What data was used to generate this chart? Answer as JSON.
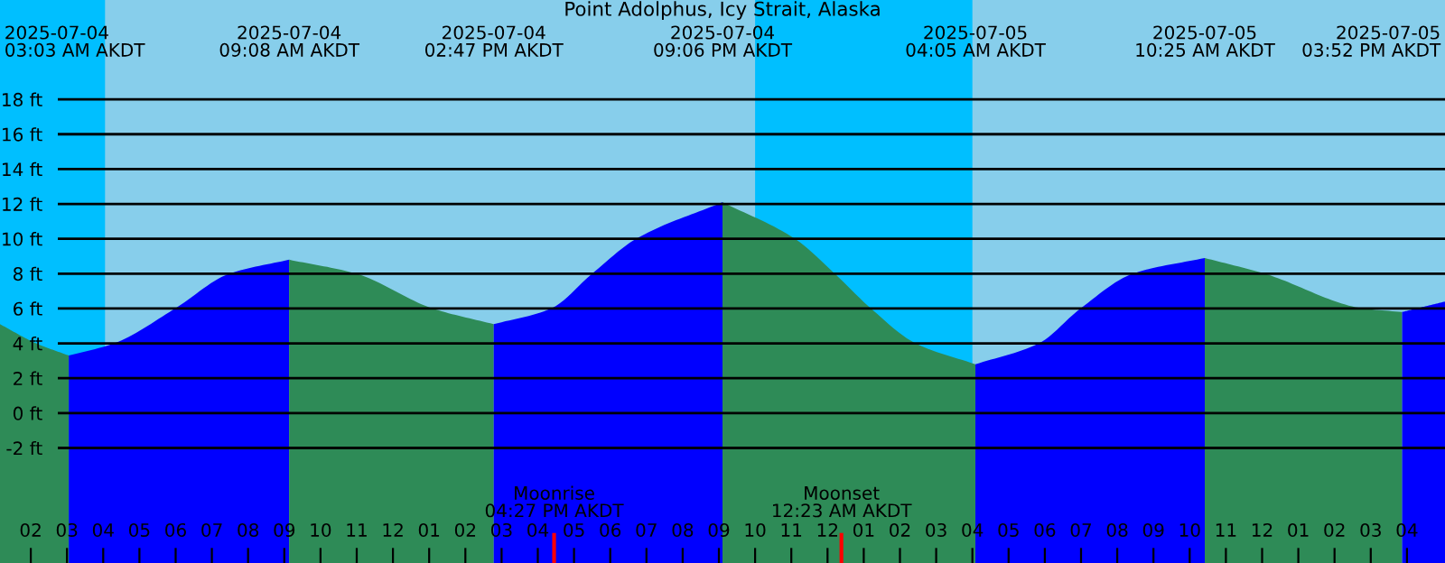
{
  "chart_data": {
    "type": "area",
    "title": "Point Adolphus, Icy Strait, Alaska",
    "series": [
      {
        "color": "#2e8b57",
        "x": [
          "2025-07-04T01:09",
          "2025-07-04T02:09",
          "2025-07-04T03:03"
        ],
        "values": [
          5.1,
          4.0,
          3.3
        ]
      },
      {
        "color": "#0000ff",
        "x": [
          "2025-07-04T03:03",
          "2025-07-04T04:18",
          "2025-07-04T05:59",
          "2025-07-04T07:29",
          "2025-07-04T09:08"
        ],
        "values": [
          3.3,
          4.0,
          6.0,
          8.0,
          8.8
        ]
      },
      {
        "color": "#2e8b57",
        "x": [
          "2025-07-04T09:08",
          "2025-07-04T10:59",
          "2025-07-04T13:06",
          "2025-07-04T14:47"
        ],
        "values": [
          8.8,
          8.0,
          6.0,
          5.1
        ]
      },
      {
        "color": "#0000ff",
        "x": [
          "2025-07-04T14:47",
          "2025-07-04T16:22",
          "2025-07-04T17:30",
          "2025-07-04T18:43",
          "2025-07-04T21:06"
        ],
        "values": [
          5.1,
          6.0,
          8.0,
          10.0,
          12.1
        ]
      },
      {
        "color": "#2e8b57",
        "x": [
          "2025-07-04T21:06",
          "2025-07-04T23:06",
          "2025-07-05T00:12",
          "2025-07-05T01:12",
          "2025-07-05T02:26",
          "2025-07-05T04:05"
        ],
        "values": [
          12.1,
          10.0,
          8.0,
          6.0,
          4.0,
          2.8
        ]
      },
      {
        "color": "#0000ff",
        "x": [
          "2025-07-05T04:05",
          "2025-07-05T05:50",
          "2025-07-05T06:59",
          "2025-07-05T08:26",
          "2025-07-05T10:25"
        ],
        "values": [
          2.8,
          4.0,
          6.0,
          8.0,
          8.9
        ]
      },
      {
        "color": "#2e8b57",
        "x": [
          "2025-07-05T10:25",
          "2025-07-05T12:04",
          "2025-07-05T14:48",
          "2025-07-05T15:52"
        ],
        "values": [
          8.9,
          8.0,
          6.0,
          5.8
        ]
      },
      {
        "color": "#0000ff",
        "x": [
          "2025-07-05T15:52",
          "2025-07-05T17:03"
        ],
        "values": [
          5.8,
          6.4
        ]
      }
    ],
    "xlim": [
      "2025-07-04T01:09",
      "2025-07-05T17:03"
    ],
    "ylim": [
      -8.6,
      23.7
    ],
    "xticks": [
      {
        "value": "2025-07-04T02:00",
        "label": "02"
      },
      {
        "value": "2025-07-04T03:00",
        "label": "03"
      },
      {
        "value": "2025-07-04T04:00",
        "label": "04"
      },
      {
        "value": "2025-07-04T05:00",
        "label": "05"
      },
      {
        "value": "2025-07-04T06:00",
        "label": "06"
      },
      {
        "value": "2025-07-04T07:00",
        "label": "07"
      },
      {
        "value": "2025-07-04T08:00",
        "label": "08"
      },
      {
        "value": "2025-07-04T09:00",
        "label": "09"
      },
      {
        "value": "2025-07-04T10:00",
        "label": "10"
      },
      {
        "value": "2025-07-04T11:00",
        "label": "11"
      },
      {
        "value": "2025-07-04T12:00",
        "label": "12"
      },
      {
        "value": "2025-07-04T13:00",
        "label": "01"
      },
      {
        "value": "2025-07-04T14:00",
        "label": "02"
      },
      {
        "value": "2025-07-04T15:00",
        "label": "03"
      },
      {
        "value": "2025-07-04T16:00",
        "label": "04"
      },
      {
        "value": "2025-07-04T17:00",
        "label": "05"
      },
      {
        "value": "2025-07-04T18:00",
        "label": "06"
      },
      {
        "value": "2025-07-04T19:00",
        "label": "07"
      },
      {
        "value": "2025-07-04T20:00",
        "label": "08"
      },
      {
        "value": "2025-07-04T21:00",
        "label": "09"
      },
      {
        "value": "2025-07-04T22:00",
        "label": "10"
      },
      {
        "value": "2025-07-04T23:00",
        "label": "11"
      },
      {
        "value": "2025-07-05T00:00",
        "label": "12"
      },
      {
        "value": "2025-07-05T01:00",
        "label": "01"
      },
      {
        "value": "2025-07-05T02:00",
        "label": "02"
      },
      {
        "value": "2025-07-05T03:00",
        "label": "03"
      },
      {
        "value": "2025-07-05T04:00",
        "label": "04"
      },
      {
        "value": "2025-07-05T05:00",
        "label": "05"
      },
      {
        "value": "2025-07-05T06:00",
        "label": "06"
      },
      {
        "value": "2025-07-05T07:00",
        "label": "07"
      },
      {
        "value": "2025-07-05T08:00",
        "label": "08"
      },
      {
        "value": "2025-07-05T09:00",
        "label": "09"
      },
      {
        "value": "2025-07-05T10:00",
        "label": "10"
      },
      {
        "value": "2025-07-05T11:00",
        "label": "11"
      },
      {
        "value": "2025-07-05T12:00",
        "label": "12"
      },
      {
        "value": "2025-07-05T13:00",
        "label": "01"
      },
      {
        "value": "2025-07-05T14:00",
        "label": "02"
      },
      {
        "value": "2025-07-05T15:00",
        "label": "03"
      },
      {
        "value": "2025-07-05T16:00",
        "label": "04"
      }
    ],
    "yticks": [
      {
        "value": -2,
        "label": "-2 ft"
      },
      {
        "value": 0,
        "label": "0 ft"
      },
      {
        "value": 2,
        "label": "2 ft"
      },
      {
        "value": 4,
        "label": "4 ft"
      },
      {
        "value": 6,
        "label": "6 ft"
      },
      {
        "value": 8,
        "label": "8 ft"
      },
      {
        "value": 10,
        "label": "10 ft"
      },
      {
        "value": 12,
        "label": "12 ft"
      },
      {
        "value": 14,
        "label": "14 ft"
      },
      {
        "value": 16,
        "label": "16 ft"
      },
      {
        "value": 18,
        "label": "18 ft"
      }
    ],
    "grid": "y",
    "bands": [
      {
        "axis": "x",
        "from": "2025-07-04T01:09",
        "to": "2025-07-04T04:03",
        "color": "#00bfff"
      },
      {
        "axis": "x",
        "from": "2025-07-04T22:00",
        "to": "2025-07-05T04:00",
        "color": "#00bfff"
      }
    ],
    "ref_lines": [
      {
        "axis": "x",
        "value": "2025-07-04T16:27",
        "label": "Moonrise\n04:27 PM AKDT",
        "color": "#ff0000"
      },
      {
        "axis": "x",
        "value": "2025-07-05T00:23",
        "label": "Moonset\n12:23 AM AKDT",
        "color": "#ff0000"
      }
    ],
    "annotations": [
      "2025-07-04\n03:03 AM AKDT",
      "2025-07-04\n09:08 AM AKDT",
      "2025-07-04\n02:47 PM AKDT",
      "2025-07-04\n09:06 PM AKDT",
      "2025-07-05\n04:05 AM AKDT",
      "2025-07-05\n10:25 AM AKDT",
      "2025-07-05\n03:52 PM AKDT"
    ]
  }
}
